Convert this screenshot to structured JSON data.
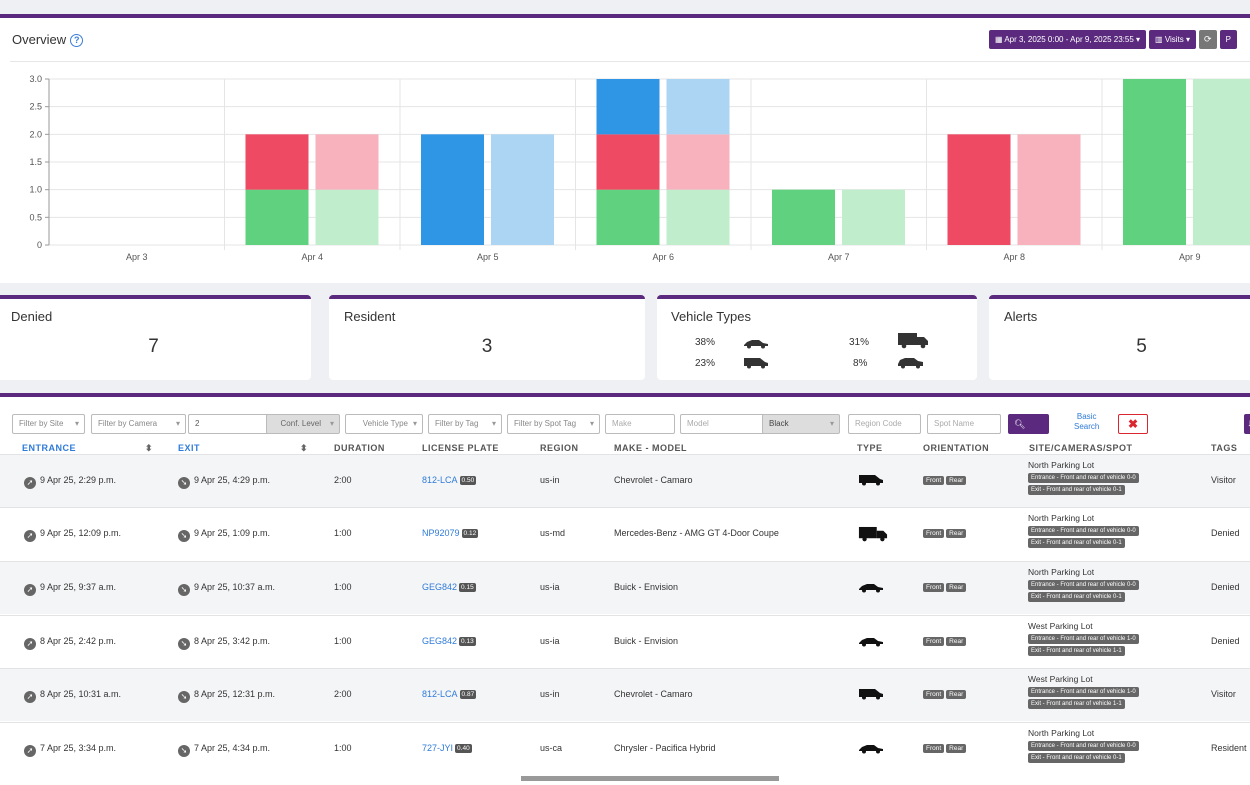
{
  "overview": {
    "title": "Overview",
    "date_range": "Apr 3, 2025 0:00 - Apr 9, 2025 23:55",
    "metric_button": "Visits",
    "extra_button": "P"
  },
  "chart_data": {
    "type": "bar",
    "stacked": true,
    "categories": [
      "Apr 3",
      "Apr 4",
      "Apr 5",
      "Apr 6",
      "Apr 7",
      "Apr 8",
      "Apr 9"
    ],
    "ylim": [
      0,
      3
    ],
    "yticks": [
      "0",
      "0.5",
      "1.0",
      "1.5",
      "2.0",
      "2.5",
      "3.0"
    ],
    "grid": true,
    "bar_groups": [
      {
        "segments": [
          {
            "color": "#60d17f",
            "values": [
              0,
              1,
              0,
              1,
              1,
              0,
              3
            ]
          },
          {
            "color": "#ee4a63",
            "values": [
              0,
              1,
              0,
              1,
              0,
              2,
              0
            ]
          },
          {
            "color": "#2f96e5",
            "values": [
              0,
              0,
              2,
              1,
              0,
              0,
              0
            ]
          }
        ]
      },
      {
        "segments": [
          {
            "color": "#c0eecd",
            "values": [
              0,
              1,
              0,
              1,
              1,
              0,
              3
            ]
          },
          {
            "color": "#f7b2be",
            "values": [
              0,
              1,
              0,
              1,
              0,
              2,
              0
            ]
          },
          {
            "color": "#acd5f4",
            "values": [
              0,
              0,
              2,
              1,
              0,
              0,
              0
            ]
          }
        ]
      }
    ]
  },
  "cards": {
    "denied": {
      "title": "Denied",
      "value": "7"
    },
    "resident": {
      "title": "Resident",
      "value": "3"
    },
    "vehicle_types": {
      "title": "Vehicle Types",
      "items": [
        "38%",
        "31%",
        "23%",
        "8%"
      ]
    },
    "alerts": {
      "title": "Alerts",
      "value": "5"
    }
  },
  "filters": {
    "site": "Filter by Site",
    "camera": "Filter by Camera",
    "number": "2",
    "conf": "Conf. Level",
    "vehicle_type": "Vehicle Type",
    "tag": "Filter by Tag",
    "spot_tag": "Filter by Spot Tag",
    "make": "Make",
    "model": "Model",
    "color": "Black",
    "region_code": "Region Code",
    "spot_name": "Spot Name",
    "search": "Search",
    "basic1": "Basic",
    "basic2": "Search"
  },
  "columns": {
    "entrance": "ENTRANCE",
    "exit": "EXIT",
    "duration": "DURATION",
    "plate": "LICENSE PLATE",
    "region": "REGION",
    "make_model": "MAKE - MODEL",
    "type": "TYPE",
    "orientation": "ORIENTATION",
    "site": "SITE/CAMERAS/SPOT",
    "tags": "TAGS"
  },
  "orientation": {
    "front": "Front",
    "rear": "Rear"
  },
  "rows": [
    {
      "entrance": "9 Apr 25, 2:29 p.m.",
      "exit": "9 Apr 25, 4:29 p.m.",
      "duration": "2:00",
      "plate": "812-LCA",
      "score": "0.50",
      "region": "us-in",
      "make_model": "Chevrolet - Camaro",
      "vehicle": "van",
      "site": "North Parking Lot",
      "cam_in": "Entrance - Front and rear of vehicle 0-0",
      "cam_out": "Exit - Front and rear of vehicle 0-1",
      "tag": "Visitor"
    },
    {
      "entrance": "9 Apr 25, 12:09 p.m.",
      "exit": "9 Apr 25, 1:09 p.m.",
      "duration": "1:00",
      "plate": "NP92079",
      "score": "0.12",
      "region": "us-md",
      "make_model": "Mercedes-Benz - AMG GT 4-Door Coupe",
      "vehicle": "truck",
      "site": "North Parking Lot",
      "cam_in": "Entrance - Front and rear of vehicle 0-0",
      "cam_out": "Exit - Front and rear of vehicle 0-1",
      "tag": "Denied"
    },
    {
      "entrance": "9 Apr 25, 9:37 a.m.",
      "exit": "9 Apr 25, 10:37 a.m.",
      "duration": "1:00",
      "plate": "GEG842",
      "score": "0.15",
      "region": "us-ia",
      "make_model": "Buick - Envision",
      "vehicle": "sedan",
      "site": "North Parking Lot",
      "cam_in": "Entrance - Front and rear of vehicle 0-0",
      "cam_out": "Exit - Front and rear of vehicle 0-1",
      "tag": "Denied"
    },
    {
      "entrance": "8 Apr 25, 2:42 p.m.",
      "exit": "8 Apr 25, 3:42 p.m.",
      "duration": "1:00",
      "plate": "GEG842",
      "score": "0.13",
      "region": "us-ia",
      "make_model": "Buick - Envision",
      "vehicle": "sedan",
      "site": "West Parking Lot",
      "cam_in": "Entrance - Front and rear of vehicle 1-0",
      "cam_out": "Exit - Front and rear of vehicle 1-1",
      "tag": "Denied"
    },
    {
      "entrance": "8 Apr 25, 10:31 a.m.",
      "exit": "8 Apr 25, 12:31 p.m.",
      "duration": "2:00",
      "plate": "812-LCA",
      "score": "0.87",
      "region": "us-in",
      "make_model": "Chevrolet - Camaro",
      "vehicle": "van",
      "site": "West Parking Lot",
      "cam_in": "Entrance - Front and rear of vehicle 1-0",
      "cam_out": "Exit - Front and rear of vehicle 1-1",
      "tag": "Visitor"
    },
    {
      "entrance": "7 Apr 25, 3:34 p.m.",
      "exit": "7 Apr 25, 4:34 p.m.",
      "duration": "1:00",
      "plate": "727-JYI",
      "score": "0.40",
      "region": "us-ca",
      "make_model": "Chrysler - Pacifica Hybrid",
      "vehicle": "sedan",
      "site": "North Parking Lot",
      "cam_in": "Entrance - Front and rear of vehicle 0-0",
      "cam_out": "Exit - Front and rear of vehicle 0-1",
      "tag": "Resident"
    }
  ]
}
